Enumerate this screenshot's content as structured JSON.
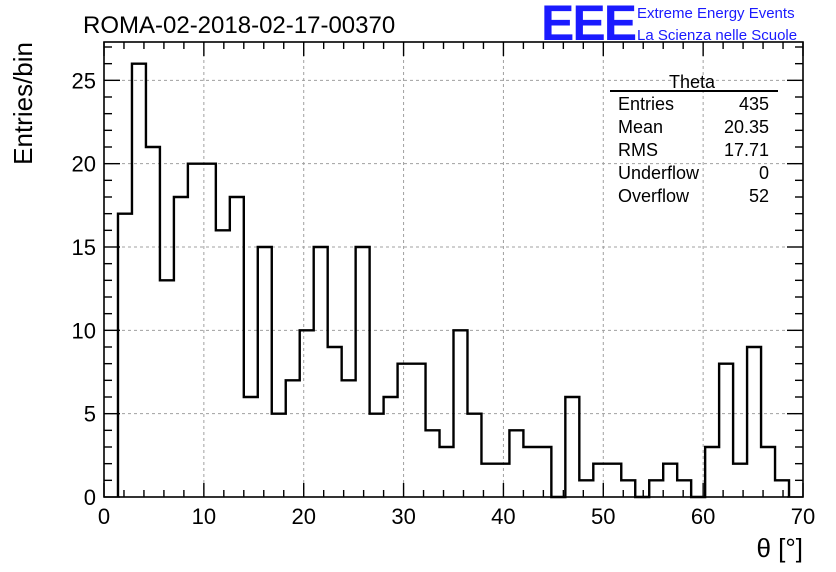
{
  "chart_data": {
    "type": "bar",
    "subtype": "step-histogram",
    "title": "ROMA-02-2018-02-17-00370",
    "xlabel": "θ [°]",
    "ylabel": "Entries/bin",
    "xlim": [
      0,
      70
    ],
    "ylim": [
      0,
      27.3
    ],
    "x_ticks": [
      "0",
      "10",
      "20",
      "30",
      "40",
      "50",
      "60",
      "70"
    ],
    "y_ticks": [
      "0",
      "5",
      "10",
      "15",
      "20",
      "25"
    ],
    "grid": true,
    "bin_edges_start": 1.4,
    "bin_width": 1.4,
    "values": [
      17,
      26,
      21,
      13,
      18,
      20,
      20,
      16,
      18,
      6,
      15,
      5,
      7,
      10,
      15,
      9,
      7,
      15,
      5,
      6,
      8,
      8,
      4,
      3,
      10,
      5,
      2,
      2,
      4,
      3,
      3,
      0,
      6,
      1,
      2,
      2,
      1,
      0,
      1,
      2,
      1,
      0,
      3,
      8,
      2,
      9,
      3,
      1
    ],
    "line_color": "#000000"
  },
  "stats_box": {
    "title": "Theta",
    "rows": [
      {
        "label": "Entries",
        "value": "435"
      },
      {
        "label": "Mean",
        "value": "20.35"
      },
      {
        "label": "RMS",
        "value": "17.71"
      },
      {
        "label": "Underflow",
        "value": "0"
      },
      {
        "label": "Overflow",
        "value": "52"
      }
    ]
  },
  "logo": {
    "mark": "EEE",
    "line1": "Extreme Energy Events",
    "line2": "La Scienza nelle Scuole",
    "color": "#1a1aff"
  }
}
